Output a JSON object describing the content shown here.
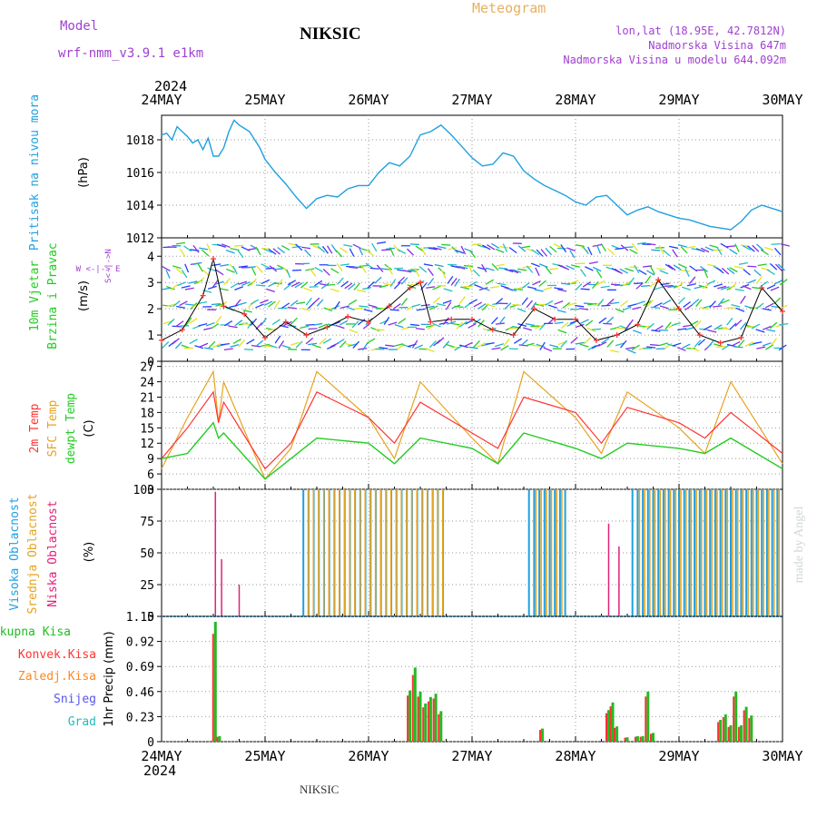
{
  "header": {
    "model_label": "Model",
    "model_name": "wrf-nmm_v3.9.1 e1km",
    "station": "NIKSIC",
    "product": "Meteogram",
    "coords": "lon,lat (18.95E, 42.7812N)",
    "elevation": "Nadmorska Visina 647m",
    "model_elevation": "Nadmorska Visina u modelu 644.092m",
    "footer_station": "NIKSIC",
    "watermark": "made by Angel"
  },
  "colors": {
    "pressure": "#1fa0e0",
    "temp2m": "#ff3333",
    "sfc": "#e6a320",
    "dew": "#22cc22",
    "high_cloud": "#1fa0e0",
    "mid_cloud": "#e6a320",
    "low_cloud": "#e0207a",
    "precip_total": "#22bb22",
    "precip_conv": "#ff3333",
    "precip_frz": "#ff8822",
    "snow": "#5555ee",
    "grad": "#22bbbb",
    "purple_text": "#a040d0",
    "meteogram_text": "#e6b060"
  },
  "time_axis": {
    "year": "2024",
    "ticks": [
      "24MAY",
      "25MAY",
      "26MAY",
      "27MAY",
      "28MAY",
      "29MAY",
      "30MAY"
    ]
  },
  "chart_data": [
    {
      "type": "line",
      "id": "pressure",
      "ylabel": "Pritisak na nivou mora",
      "unit": "(hPa)",
      "ylim": [
        1012,
        1019.5
      ],
      "yticks": [
        "1012",
        "1014",
        "1016",
        "1018"
      ],
      "grid": true,
      "series": [
        {
          "x": [
            0,
            0.05,
            0.1,
            0.15,
            0.2,
            0.25,
            0.3,
            0.35,
            0.4,
            0.45,
            0.5,
            0.55,
            0.6,
            0.65,
            0.7,
            0.75,
            0.8,
            0.85,
            0.9,
            0.95,
            1.0,
            1.1,
            1.2,
            1.3,
            1.4,
            1.5,
            1.6,
            1.7,
            1.8,
            1.9,
            2.0,
            2.1,
            2.2,
            2.3,
            2.4,
            2.5,
            2.6,
            2.7,
            2.8,
            2.9,
            3.0,
            3.1,
            3.2,
            3.3,
            3.4,
            3.5,
            3.6,
            3.7,
            3.8,
            3.9,
            4.0,
            4.1,
            4.2,
            4.3,
            4.4,
            4.5,
            4.6,
            4.7,
            4.8,
            4.9,
            5.0,
            5.1,
            5.2,
            5.3,
            5.4,
            5.5,
            5.6,
            5.7,
            5.8,
            5.9,
            6.0
          ],
          "values": [
            1018.3,
            1018.4,
            1018.0,
            1018.8,
            1018.5,
            1018.2,
            1017.8,
            1018.0,
            1017.4,
            1018.1,
            1017.0,
            1017.0,
            1017.5,
            1018.5,
            1019.2,
            1018.9,
            1018.7,
            1018.5,
            1018.0,
            1017.5,
            1016.8,
            1016.0,
            1015.3,
            1014.5,
            1013.8,
            1014.4,
            1014.6,
            1014.5,
            1015.0,
            1015.2,
            1015.2,
            1016.0,
            1016.6,
            1016.4,
            1017.0,
            1018.3,
            1018.5,
            1018.9,
            1018.3,
            1017.6,
            1016.9,
            1016.4,
            1016.5,
            1017.2,
            1017.0,
            1016.1,
            1015.6,
            1015.2,
            1014.9,
            1014.6,
            1014.2,
            1014.0,
            1014.5,
            1014.6,
            1014.0,
            1013.4,
            1013.7,
            1013.9,
            1013.6,
            1013.4,
            1013.2,
            1013.1,
            1012.9,
            1012.7,
            1012.6,
            1012.5,
            1013.0,
            1013.7,
            1014.0,
            1013.8,
            1013.6
          ]
        }
      ]
    },
    {
      "type": "line",
      "id": "wind",
      "ylabel": "10m Vjetar Brzina i Pravac",
      "unit": "(m/s)",
      "compass": "W <-|-> E",
      "compass_vertical": "S<-|->N",
      "ylim": [
        0,
        4.7
      ],
      "yticks": [
        "0",
        "1",
        "2",
        "3",
        "4"
      ],
      "series": [
        {
          "x": [
            0,
            0.2,
            0.4,
            0.5,
            0.6,
            0.8,
            1.0,
            1.2,
            1.4,
            1.6,
            1.8,
            2.0,
            2.2,
            2.4,
            2.5,
            2.6,
            2.8,
            3.0,
            3.2,
            3.4,
            3.6,
            3.8,
            4.0,
            4.2,
            4.4,
            4.6,
            4.8,
            5.0,
            5.2,
            5.4,
            5.6,
            5.8,
            6.0
          ],
          "values": [
            0.8,
            1.2,
            2.5,
            3.9,
            2.1,
            1.8,
            0.9,
            1.5,
            1.0,
            1.3,
            1.7,
            1.5,
            2.1,
            2.8,
            3.0,
            1.5,
            1.6,
            1.6,
            1.2,
            1.0,
            2.0,
            1.6,
            1.6,
            0.8,
            1.0,
            1.4,
            3.1,
            2.0,
            1.0,
            0.7,
            0.9,
            2.8,
            1.9
          ]
        }
      ]
    },
    {
      "type": "line",
      "id": "temperature",
      "ylabel": "2m Temp / SFC Temp / dewpt Temp",
      "unit": "(C)",
      "ylim": [
        3,
        28
      ],
      "yticks": [
        "3",
        "6",
        "9",
        "12",
        "15",
        "18",
        "21",
        "24",
        "27"
      ],
      "grid": true,
      "x": [
        0,
        0.25,
        0.5,
        0.55,
        0.6,
        1.0,
        1.25,
        1.5,
        2.0,
        2.25,
        2.5,
        3.0,
        3.25,
        3.5,
        4.0,
        4.25,
        4.5,
        5.0,
        5.25,
        5.5,
        6.0
      ],
      "series": [
        {
          "name": "2m Temp",
          "values": [
            9,
            15,
            22,
            16,
            20,
            7,
            12,
            22,
            17,
            12,
            20,
            14,
            11,
            21,
            18,
            12,
            19,
            16,
            13,
            18,
            10
          ]
        },
        {
          "name": "SFC Temp",
          "values": [
            7,
            17,
            26,
            16,
            24,
            5,
            11,
            26,
            17,
            9,
            24,
            13,
            8,
            26,
            17,
            10,
            22,
            15,
            10,
            24,
            8
          ]
        },
        {
          "name": "dewpt Temp",
          "values": [
            9,
            10,
            16,
            13,
            14,
            5,
            9,
            13,
            12,
            8,
            13,
            11,
            8,
            14,
            11,
            9,
            12,
            11,
            10,
            13,
            7
          ]
        }
      ]
    },
    {
      "type": "bar",
      "id": "clouds",
      "ylabel": "Visoka Oblacnost / Srednja Oblacnost / Niska Oblacnost",
      "unit": "(%)",
      "ylim": [
        0,
        100
      ],
      "yticks": [
        "0",
        "25",
        "50",
        "75",
        "100"
      ],
      "grid": true,
      "series": [
        {
          "name": "Visoka Oblacnost",
          "segments": [
            [
              1.37,
              2.75,
              100
            ],
            [
              3.55,
              3.9,
              100
            ],
            [
              4.55,
              5.99,
              100
            ]
          ]
        },
        {
          "name": "Srednja Oblacnost",
          "segments": [
            [
              1.4,
              2.7,
              100
            ],
            [
              3.6,
              3.85,
              100
            ],
            [
              4.6,
              5.95,
              100
            ]
          ]
        },
        {
          "name": "Niska Oblacnost",
          "spikes": [
            [
              0.52,
              98
            ],
            [
              0.58,
              45
            ],
            [
              0.75,
              25
            ],
            [
              4.32,
              73
            ],
            [
              4.42,
              55
            ]
          ]
        }
      ]
    },
    {
      "type": "bar",
      "id": "precip",
      "ylabel": "1hr Precip",
      "unit": "(mm)",
      "ylim": [
        0,
        1.15
      ],
      "yticks": [
        "0",
        "0.23",
        "0.46",
        "0.69",
        "0.92",
        "1.15"
      ],
      "grid": true,
      "legend": [
        "Ukupna Kisa",
        "Konvek.Kisa",
        "Zaledj.Kisa",
        "Snijeg",
        "Grad"
      ],
      "series": [
        {
          "name": "Ukupna Kisa",
          "x": [
            0.52,
            0.56,
            2.4,
            2.45,
            2.5,
            2.55,
            2.6,
            2.65,
            2.7,
            3.68,
            4.32,
            4.36,
            4.4,
            4.5,
            4.6,
            4.65,
            4.7,
            4.75,
            5.4,
            5.45,
            5.5,
            5.55,
            5.6,
            5.65,
            5.7
          ],
          "values": [
            1.1,
            0.05,
            0.47,
            0.68,
            0.46,
            0.35,
            0.41,
            0.44,
            0.28,
            0.12,
            0.29,
            0.36,
            0.14,
            0.04,
            0.05,
            0.05,
            0.46,
            0.08,
            0.2,
            0.25,
            0.15,
            0.46,
            0.15,
            0.32,
            0.24
          ]
        }
      ]
    }
  ]
}
